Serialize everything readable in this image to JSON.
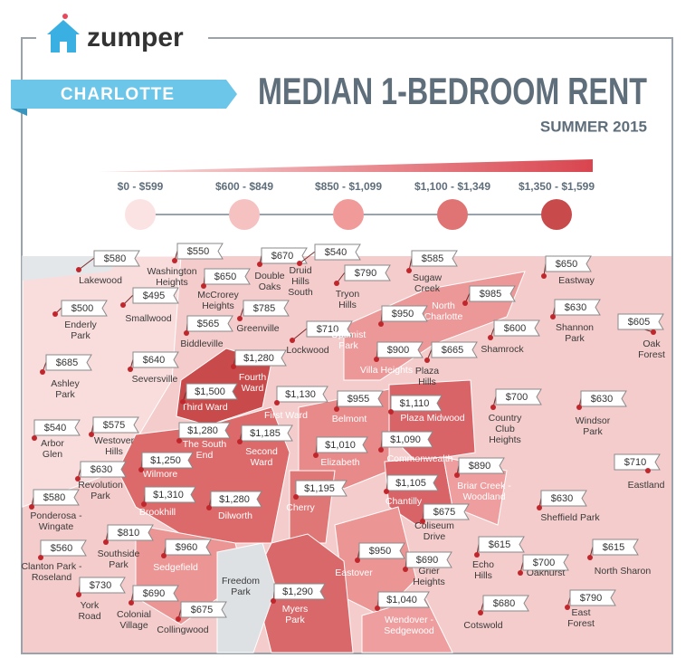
{
  "header": {
    "logo": "zumper",
    "city": "CHARLOTTE",
    "title": "MEDIAN 1-BEDROOM RENT",
    "subtitle": "SUMMER 2015"
  },
  "legend": {
    "bins": [
      "$0 - $599",
      "$600 - $849",
      "$850 - $1,099",
      "$1,100 - $1,349",
      "$1,350 - $1,599"
    ]
  },
  "neighborhoods": [
    {
      "name": [
        "Lakewood"
      ],
      "rent": "$580"
    },
    {
      "name": [
        "Washington",
        "Heights"
      ],
      "rent": "$550"
    },
    {
      "name": [
        "Double",
        "Oaks"
      ],
      "rent": "$670"
    },
    {
      "name": [
        "Druid",
        "Hills",
        "South"
      ],
      "rent": "$540"
    },
    {
      "name": [
        "Sugaw",
        "Creek"
      ],
      "rent": "$585"
    },
    {
      "name": [
        "Eastway"
      ],
      "rent": "$650"
    },
    {
      "name": [
        "Enderly",
        "Park"
      ],
      "rent": "$500"
    },
    {
      "name": [
        "Smallwood"
      ],
      "rent": "$495"
    },
    {
      "name": [
        "McCrorey",
        "Heights"
      ],
      "rent": "$650"
    },
    {
      "name": [
        "Tryon",
        "Hills"
      ],
      "rent": "$790"
    },
    {
      "name": [
        "North",
        "Charlotte"
      ],
      "rent": "$985"
    },
    {
      "name": [
        "Shannon",
        "Park"
      ],
      "rent": "$630"
    },
    {
      "name": [
        "Oak",
        "Forest"
      ],
      "rent": "$605"
    },
    {
      "name": [
        "Biddleville"
      ],
      "rent": "$565"
    },
    {
      "name": [
        "Greenville"
      ],
      "rent": "$785"
    },
    {
      "name": [
        "Lockwood"
      ],
      "rent": "$710"
    },
    {
      "name": [
        "Optimist",
        "Park"
      ],
      "rent": "$950"
    },
    {
      "name": [
        "Shamrock"
      ],
      "rent": "$600"
    },
    {
      "name": [
        "Ashley",
        "Park"
      ],
      "rent": "$685"
    },
    {
      "name": [
        "Seversville"
      ],
      "rent": "$640"
    },
    {
      "name": [
        "Villa Heights"
      ],
      "rent": "$900"
    },
    {
      "name": [
        "Plaza",
        "Hills"
      ],
      "rent": "$665"
    },
    {
      "name": [
        "Fourth",
        "Ward"
      ],
      "rent": "$1,280"
    },
    {
      "name": [
        "Third Ward"
      ],
      "rent": "$1,500"
    },
    {
      "name": [
        "First Ward"
      ],
      "rent": "$1,130"
    },
    {
      "name": [
        "Belmont"
      ],
      "rent": "$955"
    },
    {
      "name": [
        "Plaza Midwood"
      ],
      "rent": "$1,110"
    },
    {
      "name": [
        "Country",
        "Club",
        "Heights"
      ],
      "rent": "$700"
    },
    {
      "name": [
        "Windsor",
        "Park"
      ],
      "rent": "$630"
    },
    {
      "name": [
        "Arbor",
        "Glen"
      ],
      "rent": "$540"
    },
    {
      "name": [
        "Westover",
        "Hills"
      ],
      "rent": "$575"
    },
    {
      "name": [
        "The South",
        "End"
      ],
      "rent": "$1,280"
    },
    {
      "name": [
        "Second",
        "Ward"
      ],
      "rent": "$1,185"
    },
    {
      "name": [
        "Elizabeth"
      ],
      "rent": "$1,010"
    },
    {
      "name": [
        "Commonwealth"
      ],
      "rent": "$1,090"
    },
    {
      "name": [
        "Eastland"
      ],
      "rent": "$710"
    },
    {
      "name": [
        "Revolution",
        "Park"
      ],
      "rent": "$630"
    },
    {
      "name": [
        "Wilmore"
      ],
      "rent": "$1,250"
    },
    {
      "name": [
        "Briar Creek -",
        "Woodland"
      ],
      "rent": "$890"
    },
    {
      "name": [
        "Ponderosa -",
        "Wingate"
      ],
      "rent": "$580"
    },
    {
      "name": [
        "Brookhill"
      ],
      "rent": "$1,310"
    },
    {
      "name": [
        "Dilworth"
      ],
      "rent": "$1,280"
    },
    {
      "name": [
        "Cherry"
      ],
      "rent": "$1,195"
    },
    {
      "name": [
        "Chantilly"
      ],
      "rent": "$1,105"
    },
    {
      "name": [
        "Sheffield Park"
      ],
      "rent": "$630"
    },
    {
      "name": [
        "Coliseum",
        "Drive"
      ],
      "rent": "$675"
    },
    {
      "name": [
        "Southside",
        "Park"
      ],
      "rent": "$810"
    },
    {
      "name": [
        "Sedgefield"
      ],
      "rent": "$960"
    },
    {
      "name": [
        "Clanton Park -",
        "Roseland"
      ],
      "rent": "$560"
    },
    {
      "name": [
        "Eastover"
      ],
      "rent": "$950"
    },
    {
      "name": [
        "Grier",
        "Heights"
      ],
      "rent": "$690"
    },
    {
      "name": [
        "Echo",
        "Hills"
      ],
      "rent": "$615"
    },
    {
      "name": [
        "Oakhurst"
      ],
      "rent": "$700"
    },
    {
      "name": [
        "North Sharon"
      ],
      "rent": "$615"
    },
    {
      "name": [
        "Freedom",
        "Park"
      ]
    },
    {
      "name": [
        "York",
        "Road"
      ],
      "rent": "$730"
    },
    {
      "name": [
        "Colonial",
        "Village"
      ],
      "rent": "$690"
    },
    {
      "name": [
        "Myers",
        "Park"
      ],
      "rent": "$1,290"
    },
    {
      "name": [
        "Wendover -",
        "Sedgewood"
      ],
      "rent": "$1,040"
    },
    {
      "name": [
        "Cotswold"
      ],
      "rent": "$680"
    },
    {
      "name": [
        "East",
        "Forest"
      ],
      "rent": "$790"
    },
    {
      "name": [
        "Collingwood"
      ],
      "rent": "$675"
    }
  ]
}
